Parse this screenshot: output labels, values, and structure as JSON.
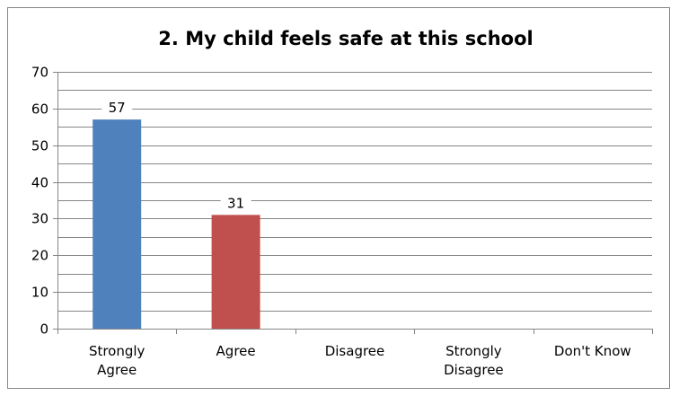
{
  "chart_data": {
    "type": "bar",
    "title": "2. My child feels safe at this school",
    "categories": [
      [
        "Strongly",
        "Agree"
      ],
      [
        "Agree"
      ],
      [
        "Disagree"
      ],
      [
        "Strongly",
        "Disagree"
      ],
      [
        "Don't Know"
      ]
    ],
    "values": [
      57,
      31,
      0,
      0,
      0
    ],
    "data_labels": [
      "57",
      "31",
      "",
      "",
      ""
    ],
    "bar_colors": [
      "#4f81bd",
      "#c0504d",
      "#9bbb59",
      "#8064a2",
      "#4bacc6"
    ],
    "xlabel": "",
    "ylabel": "",
    "ylim": [
      0,
      70
    ],
    "yticks": [
      "0",
      "10",
      "20",
      "30",
      "40",
      "50",
      "60",
      "70"
    ],
    "grid": true,
    "legend": "none"
  }
}
